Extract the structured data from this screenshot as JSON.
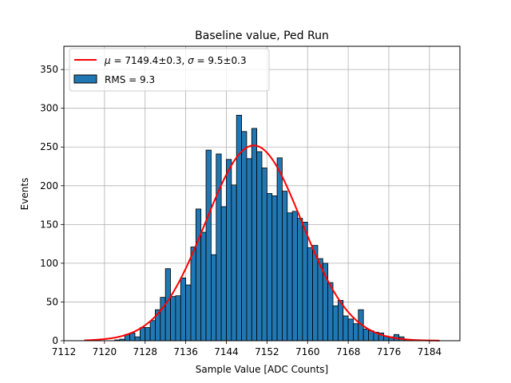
{
  "chart_data": {
    "type": "bar",
    "title": "Baseline value, Ped Run",
    "xlabel": "Sample Value [ADC Counts]",
    "ylabel": "Events",
    "xlim": [
      7112,
      7190
    ],
    "ylim": [
      0,
      380
    ],
    "xticks": [
      "7112",
      "7120",
      "7128",
      "7136",
      "7144",
      "7152",
      "7160",
      "7168",
      "7176",
      "7184"
    ],
    "yticks": [
      "0",
      "50",
      "100",
      "150",
      "200",
      "250",
      "300",
      "350"
    ],
    "grid": true,
    "legend_position": "top-left",
    "bin_width": 1,
    "bins": [
      [
        7122,
        1
      ],
      [
        7123,
        2
      ],
      [
        7124,
        8
      ],
      [
        7125,
        10
      ],
      [
        7126,
        5
      ],
      [
        7127,
        17
      ],
      [
        7128,
        17
      ],
      [
        7129,
        26
      ],
      [
        7130,
        40
      ],
      [
        7131,
        56
      ],
      [
        7132,
        93
      ],
      [
        7133,
        57
      ],
      [
        7134,
        58
      ],
      [
        7135,
        81
      ],
      [
        7136,
        72
      ],
      [
        7137,
        121
      ],
      [
        7138,
        170
      ],
      [
        7139,
        140
      ],
      [
        7140,
        246
      ],
      [
        7141,
        111
      ],
      [
        7142,
        241
      ],
      [
        7143,
        173
      ],
      [
        7144,
        234
      ],
      [
        7145,
        201
      ],
      [
        7146,
        291
      ],
      [
        7147,
        270
      ],
      [
        7148,
        235
      ],
      [
        7149,
        274
      ],
      [
        7150,
        244
      ],
      [
        7151,
        223
      ],
      [
        7152,
        190
      ],
      [
        7153,
        187
      ],
      [
        7154,
        236
      ],
      [
        7155,
        193
      ],
      [
        7156,
        165
      ],
      [
        7157,
        167
      ],
      [
        7158,
        158
      ],
      [
        7159,
        153
      ],
      [
        7160,
        120
      ],
      [
        7161,
        123
      ],
      [
        7162,
        106
      ],
      [
        7163,
        100
      ],
      [
        7164,
        75
      ],
      [
        7165,
        45
      ],
      [
        7166,
        52
      ],
      [
        7167,
        32
      ],
      [
        7168,
        28
      ],
      [
        7169,
        22
      ],
      [
        7170,
        40
      ],
      [
        7171,
        15
      ],
      [
        7172,
        13
      ],
      [
        7173,
        11
      ],
      [
        7174,
        10
      ],
      [
        7175,
        6
      ],
      [
        7176,
        5
      ],
      [
        7177,
        8
      ],
      [
        7178,
        5
      ],
      [
        7179,
        1
      ]
    ],
    "series": [
      {
        "name": "RMS = 9.3",
        "kind": "histogram",
        "color": "#1f77b4",
        "edge": "#000000"
      },
      {
        "name": "$\\mu = 7149.4\\pm0.3$, $\\sigma = 9.5\\pm0.3$",
        "kind": "gaussian-fit",
        "color": "#ff0000",
        "mu": 7149.4,
        "sigma": 9.5,
        "amplitude": 252,
        "x_range": [
          7116,
          7186
        ]
      }
    ]
  },
  "legend": {
    "fit_label_parts": {
      "mu_sym": "μ",
      "mu_val": " = 7149.4±0.3, ",
      "sigma_sym": "σ",
      "sigma_val": " = 9.5±0.3"
    },
    "hist_label": "RMS = 9.3"
  }
}
